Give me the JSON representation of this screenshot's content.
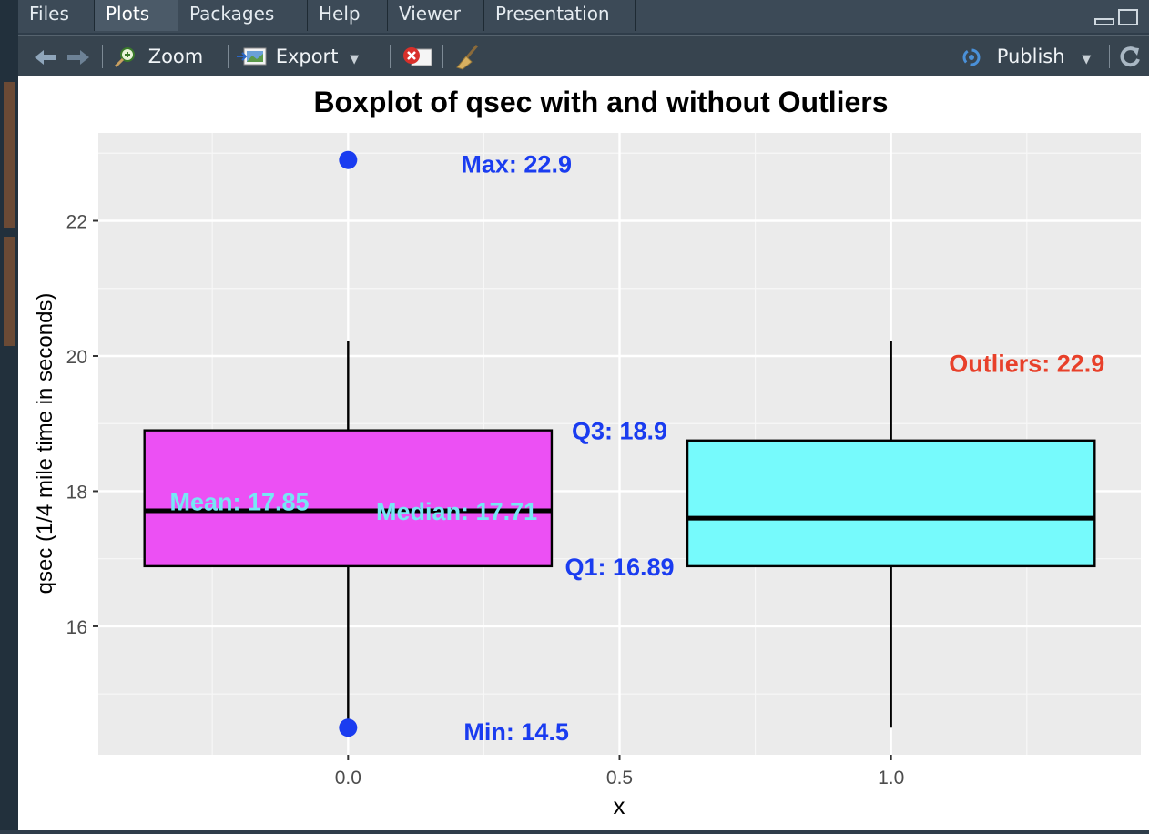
{
  "tabs": [
    "Files",
    "Plots",
    "Packages",
    "Help",
    "Viewer",
    "Presentation"
  ],
  "active_tab": "Plots",
  "toolbar": {
    "zoom_label": "Zoom",
    "export_label": "Export",
    "publish_label": "Publish"
  },
  "icons": [
    "back-arrow-icon",
    "forward-arrow-icon",
    "zoom-icon",
    "export-icon",
    "clear-plot-icon",
    "broom-icon",
    "publish-icon",
    "refresh-icon",
    "minimize-icon",
    "maximize-icon"
  ],
  "chart_data": {
    "type": "box",
    "title": "Boxplot of qsec with and without Outliers",
    "xlabel": "x",
    "ylabel": "qsec (1/4 mile time in seconds)",
    "xlim": [
      -0.46,
      1.46
    ],
    "ylim": [
      14.1,
      23.3
    ],
    "x_ticks": [
      "0.0",
      "0.5",
      "1.0"
    ],
    "x_tick_values": [
      0,
      0.5,
      1
    ],
    "y_ticks": [
      "16",
      "18",
      "20",
      "22"
    ],
    "y_tick_values": [
      16,
      18,
      20,
      22
    ],
    "grid": true,
    "boxes": [
      {
        "x": 0,
        "q1": 16.89,
        "median": 17.71,
        "q3": 18.9,
        "whisker_low": 14.5,
        "whisker_high": 20.22,
        "fill": "#ec50f4"
      },
      {
        "x": 1,
        "q1": 16.89,
        "median": 17.6,
        "q3": 18.75,
        "whisker_low": 14.5,
        "whisker_high": 20.22,
        "fill": "#76fafc"
      }
    ],
    "points": [
      {
        "x": 0,
        "y": 22.9,
        "color": "#1a3cf0"
      },
      {
        "x": 0,
        "y": 14.5,
        "color": "#1a3cf0"
      }
    ],
    "annotations": [
      {
        "text": "Max: 22.9",
        "x": 0.31,
        "y": 22.85,
        "color": "#1a3cf0",
        "anchor": "middle"
      },
      {
        "text": "Min: 14.5",
        "x": 0.31,
        "y": 14.45,
        "color": "#1a3cf0",
        "anchor": "middle"
      },
      {
        "text": "Q3: 18.9",
        "x": 0.5,
        "y": 18.9,
        "color": "#1a3cf0",
        "anchor": "middle"
      },
      {
        "text": "Q1: 16.89",
        "x": 0.5,
        "y": 16.89,
        "color": "#1a3cf0",
        "anchor": "middle"
      },
      {
        "text": "Mean: 17.85",
        "x": -0.2,
        "y": 17.85,
        "color": "#76e7f4",
        "anchor": "middle"
      },
      {
        "text": "Median: 17.71",
        "x": 0.2,
        "y": 17.71,
        "color": "#76e7f4",
        "anchor": "middle"
      },
      {
        "text": "Outliers: 22.9",
        "x": 1.25,
        "y": 19.9,
        "color": "#e8402a",
        "anchor": "middle"
      }
    ]
  }
}
